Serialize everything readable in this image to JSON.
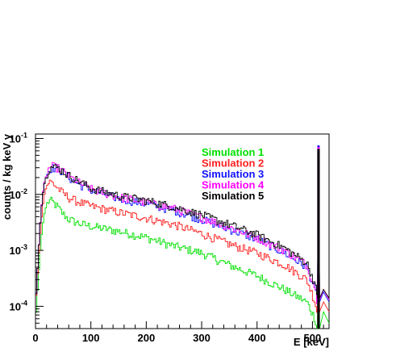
{
  "chart_data": {
    "type": "line",
    "xlabel": "E [keV]",
    "ylabel": "counts / kg keV y",
    "xlim": [
      0,
      530
    ],
    "ylim": [
      4e-05,
      0.12
    ],
    "yscale": "log",
    "grid": false,
    "legend_position": "top-right",
    "x_ticks": [
      0,
      100,
      200,
      300,
      400,
      500
    ],
    "y_ticks": [
      {
        "value": 0.0001,
        "base": "10",
        "exp": "-4"
      },
      {
        "value": 0.001,
        "base": "10",
        "exp": "-3"
      },
      {
        "value": 0.01,
        "base": "10",
        "exp": "-2"
      },
      {
        "value": 0.1,
        "base": "10",
        "exp": "-1"
      }
    ],
    "series": [
      {
        "name": "Simulation 1",
        "color": "#00e000",
        "x": [
          0,
          5,
          10,
          15,
          20,
          25,
          30,
          40,
          50,
          60,
          80,
          100,
          150,
          200,
          250,
          300,
          350,
          400,
          450,
          490,
          505,
          509,
          511,
          513,
          520,
          530
        ],
        "y": [
          5e-05,
          0.0003,
          0.0015,
          0.004,
          0.0065,
          0.0078,
          0.0075,
          0.006,
          0.0045,
          0.0036,
          0.003,
          0.0027,
          0.0022,
          0.0017,
          0.0012,
          0.0009,
          0.00055,
          0.00035,
          0.0002,
          0.00012,
          6e-05,
          4e-05,
          0.05,
          4e-05,
          8e-05,
          5e-05
        ]
      },
      {
        "name": "Simulation 2",
        "color": "#ff2020",
        "x": [
          0,
          5,
          10,
          15,
          20,
          25,
          30,
          40,
          50,
          60,
          80,
          100,
          150,
          200,
          250,
          300,
          350,
          400,
          450,
          490,
          505,
          509,
          511,
          513,
          520,
          530
        ],
        "y": [
          0.0001,
          0.0006,
          0.003,
          0.009,
          0.014,
          0.017,
          0.0165,
          0.013,
          0.0105,
          0.0088,
          0.0072,
          0.0062,
          0.0048,
          0.0038,
          0.0029,
          0.002,
          0.0013,
          0.0009,
          0.00055,
          0.0003,
          0.00012,
          8e-05,
          0.06,
          8e-05,
          0.00012,
          8e-05
        ]
      },
      {
        "name": "Simulation 3",
        "color": "#1010ff",
        "x": [
          0,
          5,
          10,
          15,
          20,
          25,
          30,
          40,
          50,
          60,
          80,
          100,
          150,
          200,
          250,
          300,
          350,
          400,
          450,
          490,
          505,
          509,
          511,
          513,
          520,
          530
        ],
        "y": [
          0.0001,
          0.0008,
          0.005,
          0.014,
          0.022,
          0.028,
          0.03,
          0.029,
          0.025,
          0.02,
          0.015,
          0.012,
          0.0085,
          0.0068,
          0.0052,
          0.0036,
          0.0024,
          0.0016,
          0.0009,
          0.0005,
          0.0002,
          0.00012,
          0.075,
          0.00012,
          0.00018,
          0.00012
        ]
      },
      {
        "name": "Simulation 4",
        "color": "#ff00ff",
        "x": [
          0,
          5,
          10,
          15,
          20,
          25,
          30,
          40,
          50,
          60,
          80,
          100,
          150,
          200,
          250,
          300,
          350,
          400,
          450,
          490,
          505,
          509,
          511,
          513,
          520,
          530
        ],
        "y": [
          0.0001,
          0.0008,
          0.005,
          0.015,
          0.023,
          0.03,
          0.032,
          0.03,
          0.026,
          0.021,
          0.016,
          0.0125,
          0.009,
          0.0072,
          0.0056,
          0.0039,
          0.0026,
          0.0017,
          0.001,
          0.00055,
          0.00022,
          0.00013,
          0.07,
          0.00013,
          0.0002,
          0.00013
        ]
      },
      {
        "name": "Simulation 5",
        "color": "#000000",
        "x": [
          0,
          5,
          10,
          15,
          20,
          25,
          30,
          40,
          50,
          60,
          80,
          100,
          150,
          200,
          250,
          300,
          350,
          400,
          450,
          490,
          505,
          509,
          511,
          513,
          520,
          530
        ],
        "y": [
          0.0001,
          0.0008,
          0.0048,
          0.014,
          0.022,
          0.029,
          0.031,
          0.03,
          0.026,
          0.022,
          0.017,
          0.013,
          0.0095,
          0.0078,
          0.006,
          0.0043,
          0.0029,
          0.0019,
          0.0011,
          0.0006,
          0.00025,
          0.00014,
          0.065,
          0.00014,
          0.0002,
          0.00014
        ]
      }
    ]
  }
}
